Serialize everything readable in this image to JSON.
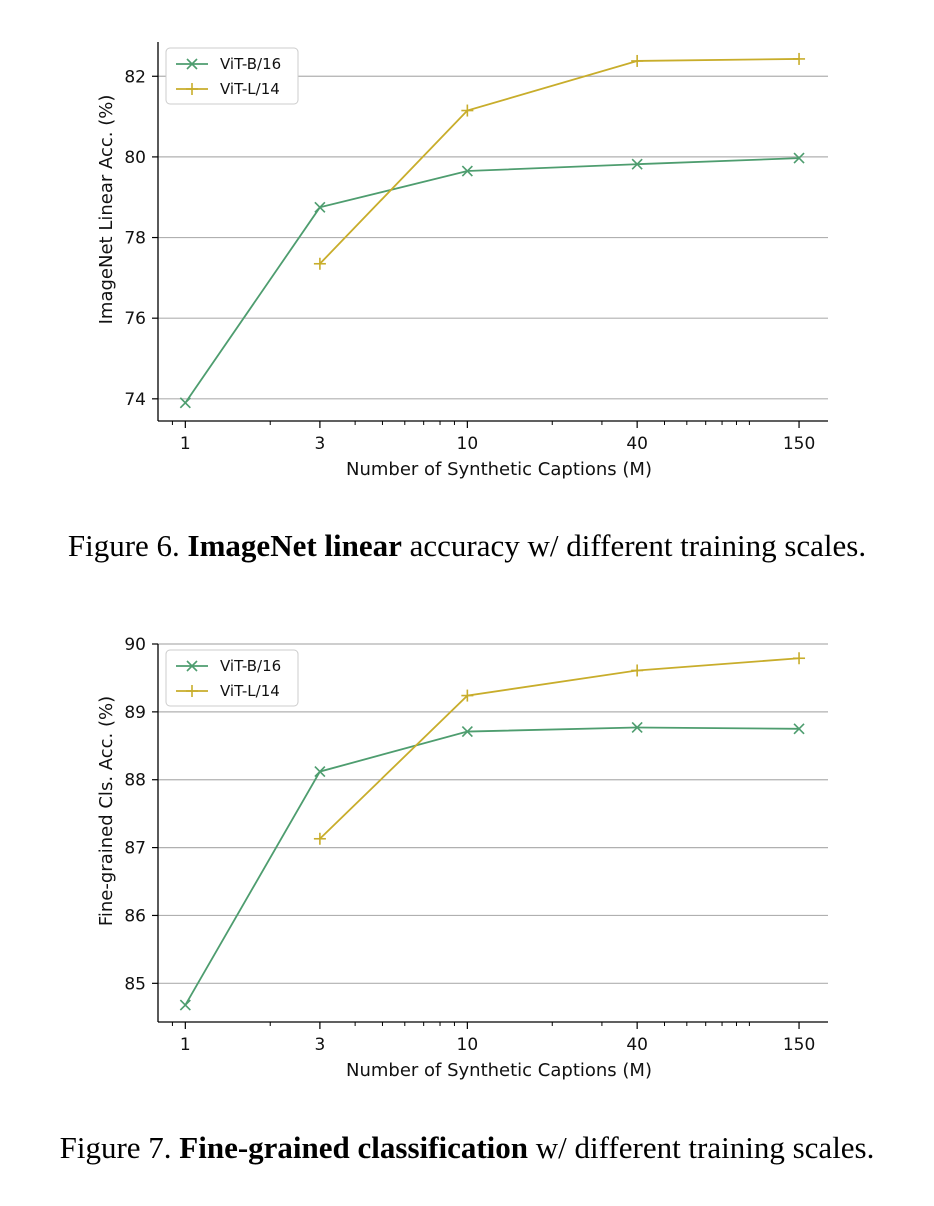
{
  "colors": {
    "vitb": "#4e9d6f",
    "vitl": "#c8ad2b",
    "grid": "#b0b0b0",
    "axis": "#000000"
  },
  "chart_data": [
    {
      "type": "line",
      "xscale": "log",
      "x": [
        1,
        3,
        10,
        40,
        150
      ],
      "xticks": [
        1,
        3,
        10,
        40,
        150
      ],
      "xlim": [
        0.8,
        190
      ],
      "ylim": [
        73.45,
        82.85
      ],
      "yticks": [
        74,
        76,
        78,
        80,
        82
      ],
      "xlabel": "Number of Synthetic Captions (M)",
      "ylabel": "ImageNet Linear Acc. (%)",
      "grid": "horizontal",
      "legend": "top-left",
      "series": [
        {
          "name": "ViT-B/16",
          "marker": "x",
          "color": "#4e9d6f",
          "x": [
            1,
            3,
            10,
            40,
            150
          ],
          "values": [
            73.9,
            78.75,
            79.65,
            79.82,
            79.97
          ]
        },
        {
          "name": "ViT-L/14",
          "marker": "+",
          "color": "#c8ad2b",
          "x": [
            3,
            10,
            40,
            150
          ],
          "values": [
            77.35,
            81.15,
            82.38,
            82.43
          ]
        }
      ]
    },
    {
      "type": "line",
      "xscale": "log",
      "x": [
        1,
        3,
        10,
        40,
        150
      ],
      "xticks": [
        1,
        3,
        10,
        40,
        150
      ],
      "xlim": [
        0.8,
        190
      ],
      "ylim": [
        84.43,
        90.0
      ],
      "yticks": [
        85,
        86,
        87,
        88,
        89,
        90
      ],
      "xlabel": "Number of Synthetic Captions (M)",
      "ylabel": "Fine-grained Cls. Acc. (%)",
      "grid": "horizontal",
      "legend": "top-left",
      "series": [
        {
          "name": "ViT-B/16",
          "marker": "x",
          "color": "#4e9d6f",
          "x": [
            1,
            3,
            10,
            40,
            150
          ],
          "values": [
            84.68,
            88.12,
            88.71,
            88.77,
            88.75
          ]
        },
        {
          "name": "ViT-L/14",
          "marker": "+",
          "color": "#c8ad2b",
          "x": [
            3,
            10,
            40,
            150
          ],
          "values": [
            87.13,
            89.24,
            89.61,
            89.79
          ]
        }
      ]
    }
  ],
  "figures": [
    {
      "caption_prefix": "Figure 6. ",
      "caption_bold": "ImageNet linear",
      "caption_rest": " accuracy w/ different training scales."
    },
    {
      "caption_prefix": "Figure 7. ",
      "caption_bold": "Fine-grained classification",
      "caption_rest": " w/ different training scales."
    }
  ]
}
